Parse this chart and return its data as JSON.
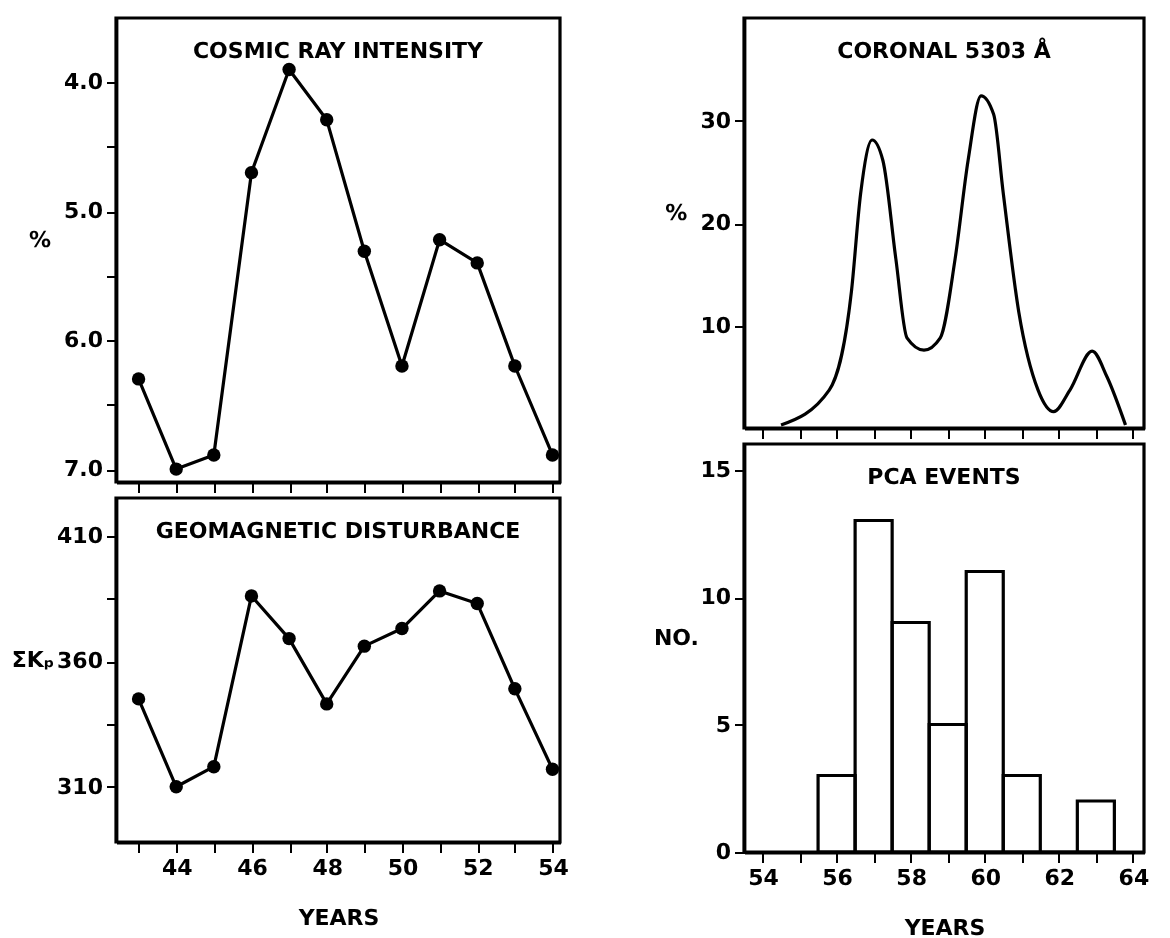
{
  "chart_data": [
    {
      "type": "line",
      "title": "COSMIC RAY INTENSITY",
      "ylabel": "%",
      "x": [
        43,
        44,
        45,
        46,
        47,
        48,
        49,
        50,
        51,
        52,
        53,
        54
      ],
      "values": [
        6.3,
        7.0,
        6.89,
        4.7,
        3.9,
        4.29,
        5.31,
        6.2,
        5.22,
        5.4,
        6.2,
        6.89
      ],
      "color": "#000000",
      "marker": "circle",
      "line_style": "solid",
      "xlim": [
        42.4,
        54.2
      ],
      "xticks": [
        {
          "value": 43,
          "label": null
        },
        {
          "value": 44,
          "label": null
        },
        {
          "value": 45,
          "label": null
        },
        {
          "value": 46,
          "label": null
        },
        {
          "value": 47,
          "label": null
        },
        {
          "value": 48,
          "label": null
        },
        {
          "value": 49,
          "label": null
        },
        {
          "value": 50,
          "label": null
        },
        {
          "value": 51,
          "label": null
        },
        {
          "value": 52,
          "label": null
        },
        {
          "value": 53,
          "label": null
        },
        {
          "value": 54,
          "label": null
        }
      ],
      "ylim": [
        7.1,
        3.5
      ],
      "yticks": [
        {
          "value": 4,
          "label": "4.0"
        },
        {
          "value": 4.5,
          "label": null
        },
        {
          "value": 5,
          "label": "5.0"
        },
        {
          "value": 5.5,
          "label": null
        },
        {
          "value": 6,
          "label": "6.0"
        },
        {
          "value": 6.5,
          "label": null
        },
        {
          "value": 7,
          "label": "7.0"
        }
      ],
      "tick_labels": "y"
    },
    {
      "type": "line",
      "title": "GEOMAGNETIC DISTURBANCE",
      "xlabel": "YEARS",
      "ylabel": "ΣKₚ",
      "x": [
        43,
        44,
        45,
        46,
        47,
        48,
        49,
        50,
        51,
        52,
        53,
        54
      ],
      "values": [
        345,
        310,
        318,
        386,
        369,
        343,
        366,
        373,
        388,
        383,
        349,
        317
      ],
      "color": "#000000",
      "marker": "circle",
      "line_style": "solid",
      "xlim": [
        42.4,
        54.2
      ],
      "xticks": [
        {
          "value": 43,
          "label": null
        },
        44,
        {
          "value": 45,
          "label": null
        },
        46,
        {
          "value": 47,
          "label": null
        },
        48,
        {
          "value": 49,
          "label": null
        },
        50,
        {
          "value": 51,
          "label": null
        },
        52,
        {
          "value": 53,
          "label": null
        },
        54
      ],
      "ylim": [
        288,
        425
      ],
      "yticks": [
        310,
        {
          "value": 335,
          "label": null
        },
        360,
        {
          "value": 385,
          "label": null
        },
        410
      ]
    },
    {
      "type": "line",
      "title": "CORONAL 5303 Å",
      "ylabel": "%",
      "x": [
        54.5,
        55.8,
        56.4,
        56.65,
        56.96,
        57.25,
        57.6,
        57.9,
        58.36,
        58.8,
        59.2,
        59.55,
        59.9,
        60.24,
        60.5,
        60.92,
        61.44,
        61.86,
        62.3,
        62.9,
        63.3,
        63.8
      ],
      "values": [
        0.3,
        3.7,
        13.3,
        22.9,
        28.1,
        26.1,
        16.5,
        8.8,
        7.6,
        8.8,
        16.5,
        26.1,
        32.4,
        30.6,
        22.9,
        11.3,
        3.7,
        1.6,
        3.7,
        7.5,
        5.0,
        0.3
      ],
      "color": "#000000",
      "marker": "none",
      "line_style": "solid",
      "xlim": [
        53.5,
        64.3
      ],
      "xticks": [
        {
          "value": 54,
          "label": null
        },
        {
          "value": 55,
          "label": null
        },
        {
          "value": 56,
          "label": null
        },
        {
          "value": 57,
          "label": null
        },
        {
          "value": 58,
          "label": null
        },
        {
          "value": 59,
          "label": null
        },
        {
          "value": 60,
          "label": null
        },
        {
          "value": 61,
          "label": null
        },
        {
          "value": 62,
          "label": null
        },
        {
          "value": 63,
          "label": null
        },
        {
          "value": 64,
          "label": null
        }
      ],
      "ylim": [
        0,
        40
      ],
      "yticks": [
        10,
        20,
        30
      ],
      "tick_labels": "y"
    },
    {
      "type": "histogram",
      "title": "PCA EVENTS",
      "xlabel": "YEARS",
      "ylabel": "NO.",
      "bins": [
        55.5,
        56.5,
        57.5,
        58.5,
        59.5,
        60.5,
        61.5,
        62.5,
        63.5
      ],
      "values": [
        3,
        13,
        9,
        5,
        11,
        3,
        0,
        2
      ],
      "color": "#000000",
      "xlim": [
        53.5,
        64.3
      ],
      "xticks": [
        54,
        {
          "value": 55,
          "label": null
        },
        56,
        {
          "value": 57,
          "label": null
        },
        58,
        {
          "value": 59,
          "label": null
        },
        60,
        {
          "value": 61,
          "label": null
        },
        62,
        {
          "value": 63,
          "label": null
        },
        64
      ],
      "ylim": [
        0,
        16
      ],
      "yticks": [
        0,
        5,
        10,
        15
      ]
    }
  ]
}
